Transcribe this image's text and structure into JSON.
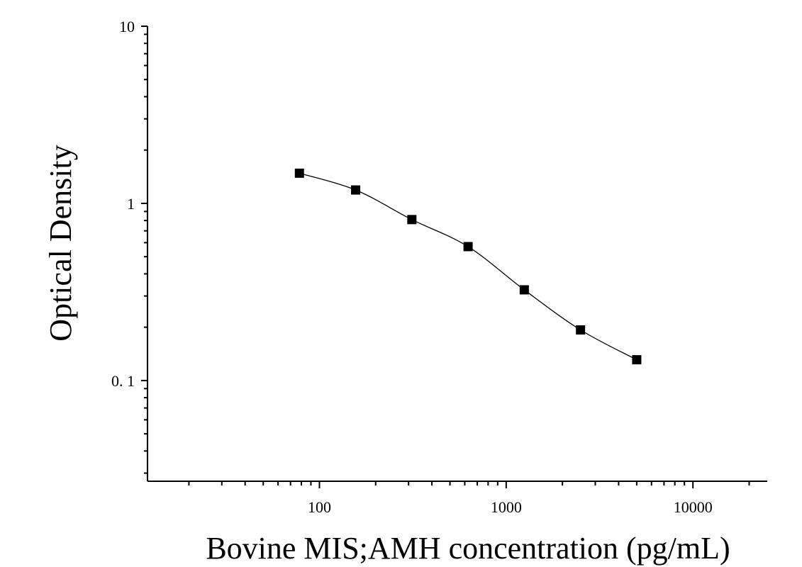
{
  "chart_data": {
    "type": "scatter",
    "title": "",
    "xlabel": "Bovine MIS;AMH concentration (pg/mL)",
    "ylabel": "Optical Density",
    "x_scale": "log",
    "y_scale": "log",
    "xlim": [
      12,
      25000
    ],
    "ylim": [
      0.027,
      10
    ],
    "x_ticks": [
      {
        "value": 100,
        "label": "100"
      },
      {
        "value": 1000,
        "label": "1000"
      },
      {
        "value": 10000,
        "label": "10000"
      }
    ],
    "y_ticks": [
      {
        "value": 10,
        "label": "10"
      },
      {
        "value": 1,
        "label": "1"
      },
      {
        "value": 0.1,
        "label": "0. 1"
      }
    ],
    "grid": false,
    "legend": "none",
    "series": [
      {
        "x": [
          78.125,
          156.25,
          312.5,
          625,
          1250,
          2500,
          5000
        ],
        "y": [
          1.48,
          1.19,
          0.81,
          0.57,
          0.325,
          0.193,
          0.131
        ],
        "marker": "square",
        "fit_line": true
      }
    ],
    "colors": {
      "marker": "#000000",
      "line": "#000000"
    }
  }
}
